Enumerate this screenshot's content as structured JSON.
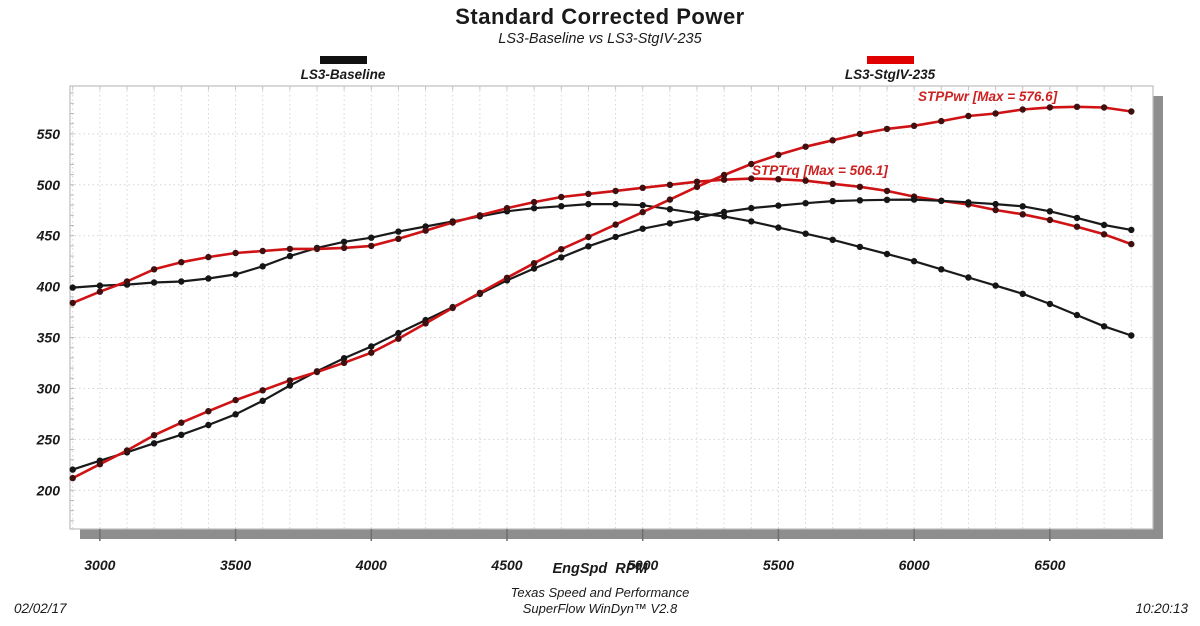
{
  "header": {
    "title": "Standard Corrected Power",
    "subtitle": "LS3-Baseline vs LS3-StgIV-235"
  },
  "legend": [
    {
      "label": "LS3-Baseline",
      "color": "#111111"
    },
    {
      "label": "LS3-StgIV-235",
      "color": "#e00000"
    }
  ],
  "annotations": {
    "power_max": "STPPwr [Max = 576.6]",
    "torque_max": "STPTrq [Max = 506.1]"
  },
  "footer": {
    "company": "Texas Speed and Performance",
    "software": "SuperFlow WinDyn™ V2.8",
    "date": "02/02/17",
    "time": "10:20:13"
  },
  "chart_data": {
    "type": "line",
    "title": "Standard Corrected Power",
    "subtitle": "LS3-Baseline vs LS3-StgIV-235",
    "xlabel": "EngSpd  RPM",
    "ylabel": "",
    "xlim": [
      2890,
      6880
    ],
    "ylim": [
      162,
      597
    ],
    "x_ticks": [
      3000,
      3500,
      4000,
      4500,
      5000,
      5500,
      6000,
      6500
    ],
    "y_ticks": [
      200,
      250,
      300,
      350,
      400,
      450,
      500,
      550
    ],
    "grid": true,
    "legend_position": "top",
    "max_values": {
      "STPPwr": 576.6,
      "STPTrq": 506.1
    },
    "x_rpm": [
      2900,
      3000,
      3100,
      3200,
      3300,
      3400,
      3500,
      3600,
      3700,
      3800,
      3900,
      4000,
      4100,
      4200,
      4300,
      4400,
      4500,
      4600,
      4700,
      4800,
      4900,
      5000,
      5100,
      5200,
      5300,
      5400,
      5500,
      5600,
      5700,
      5800,
      5900,
      6000,
      6100,
      6200,
      6300,
      6400,
      6500,
      6600,
      6700,
      6800
    ],
    "series": [
      {
        "name": "LS3-Baseline STPTrq",
        "group": "LS3-Baseline",
        "color": "#1a1a1a",
        "marker_color": "#151515",
        "values": [
          399,
          401,
          402,
          404,
          405,
          408,
          412,
          420,
          430,
          438,
          444,
          448,
          454,
          459,
          464,
          469,
          474,
          477,
          479,
          481,
          481,
          480,
          476,
          472,
          469,
          464,
          458,
          452,
          446,
          439,
          432,
          425,
          417,
          409,
          401,
          393,
          383,
          372,
          361,
          352
        ]
      },
      {
        "name": "LS3-Baseline STPPwr",
        "group": "LS3-Baseline",
        "color": "#1a1a1a",
        "marker_color": "#151515",
        "values": [
          220.3,
          229.1,
          237.3,
          246.2,
          254.5,
          264.1,
          274.6,
          287.9,
          302.9,
          316.9,
          329.7,
          341.2,
          354.4,
          367.1,
          379.9,
          392.9,
          406.1,
          417.8,
          428.7,
          439.6,
          448.8,
          456.9,
          462.2,
          467.3,
          473.3,
          477.1,
          479.6,
          481.9,
          484.0,
          484.8,
          485.3,
          485.5,
          484.3,
          482.8,
          481.0,
          478.9,
          474.0,
          467.5,
          460.5,
          455.7
        ]
      },
      {
        "name": "LS3-StgIV-235 STPTrq",
        "group": "LS3-StgIV-235",
        "color": "#cf1315",
        "marker_color": "#401010",
        "values": [
          384,
          395,
          405,
          417,
          424,
          429,
          433,
          435,
          437,
          437,
          438,
          440,
          447,
          455,
          463,
          470,
          477,
          483,
          488,
          491,
          494,
          497,
          500,
          503,
          505,
          506.1,
          505.5,
          504,
          501,
          498,
          494,
          488.4,
          484.3,
          480.7,
          475.2,
          471,
          465.4,
          458.8,
          451.4,
          441.8
        ]
      },
      {
        "name": "LS3-StgIV-235 STPPwr",
        "group": "LS3-StgIV-235",
        "color": "#cf1315",
        "marker_color": "#401010",
        "values": [
          212.0,
          225.6,
          239.1,
          254.1,
          266.4,
          277.7,
          288.6,
          298.2,
          307.9,
          316.2,
          325.2,
          335.1,
          348.9,
          363.9,
          379.1,
          393.8,
          408.7,
          423.0,
          436.7,
          448.7,
          460.9,
          473.2,
          485.5,
          498.0,
          509.6,
          520.4,
          529.4,
          537.4,
          543.7,
          550.0,
          554.9,
          557.9,
          562.5,
          567.5,
          570.0,
          573.9,
          576.0,
          576.6,
          575.9,
          572.0
        ]
      }
    ]
  }
}
